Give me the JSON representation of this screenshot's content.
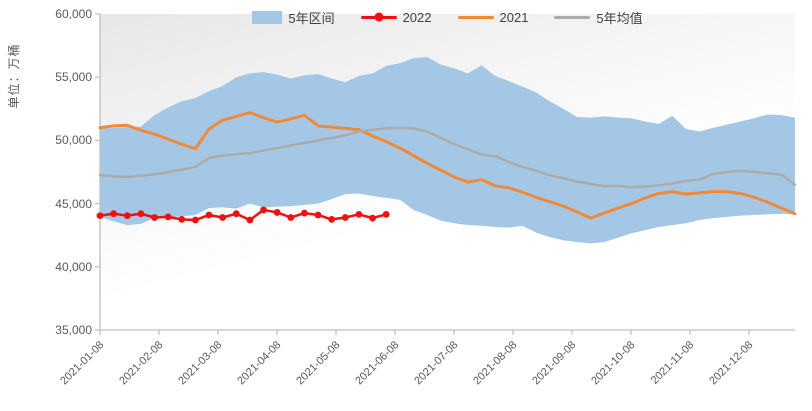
{
  "chart_data": {
    "type": "line",
    "title": "",
    "y_axis": {
      "title": "单位：万桶",
      "min": 35000,
      "max": 60000,
      "tick_step": 5000,
      "tick_labels": [
        "60,000",
        "55,000",
        "50,000",
        "45,000",
        "40,000",
        "35,000"
      ]
    },
    "x_axis": {
      "tick_labels": [
        "2021-01-08",
        "2021-02-08",
        "2021-03-08",
        "2021-04-08",
        "2021-05-08",
        "2021-06-08",
        "2021-07-08",
        "2021-08-08",
        "2021-09-08",
        "2021-10-08",
        "2021-11-08",
        "2021-12-08"
      ],
      "points_per_series": 52,
      "frequency": "weekly"
    },
    "legend": [
      "5年区间",
      "2022",
      "2021",
      "5年均值"
    ],
    "legend_position": "top-center",
    "grid": false,
    "colors": {
      "band": "#A5C7E6",
      "red_2022": "#EE1111",
      "orange_2021": "#EF8A39",
      "gray_mean": "#ABABAB",
      "axis": "#BFBFBF",
      "tick_text": "#595959"
    },
    "series": [
      {
        "name": "5年区间",
        "type": "band",
        "color": "#A5C7E6",
        "upper": [
          50900,
          51000,
          51050,
          51100,
          52000,
          52600,
          53100,
          53350,
          53900,
          54300,
          55000,
          55300,
          55400,
          55200,
          54900,
          55150,
          55250,
          54900,
          54600,
          55100,
          55300,
          55900,
          56100,
          56500,
          56600,
          56000,
          55700,
          55300,
          55950,
          55100,
          54700,
          54250,
          53800,
          53100,
          52500,
          51850,
          51800,
          51900,
          51800,
          51750,
          51500,
          51300,
          51950,
          50900,
          50700,
          51000,
          51250,
          51500,
          51750,
          52050,
          52000,
          51800
        ],
        "lower": [
          43950,
          43600,
          43300,
          43400,
          43850,
          43900,
          44000,
          44100,
          44650,
          44700,
          44600,
          45000,
          44700,
          44750,
          44800,
          44900,
          45000,
          45350,
          45750,
          45800,
          45600,
          45450,
          45300,
          44500,
          44100,
          43650,
          43450,
          43300,
          43250,
          43150,
          43100,
          43250,
          42700,
          42350,
          42100,
          41950,
          41850,
          41950,
          42300,
          42650,
          42900,
          43150,
          43300,
          43450,
          43700,
          43850,
          43950,
          44050,
          44100,
          44150,
          44200,
          44150
        ]
      },
      {
        "name": "2022",
        "type": "line-markers",
        "color": "#EE1111",
        "values": [
          44050,
          44200,
          44050,
          44200,
          43900,
          43950,
          43750,
          43700,
          44100,
          43900,
          44200,
          43700,
          44500,
          44300,
          43900,
          44250,
          44100,
          43750,
          43900,
          44150,
          43850,
          44150
        ]
      },
      {
        "name": "2021",
        "type": "line",
        "color": "#EF8A39",
        "values": [
          51000,
          51150,
          51200,
          50800,
          50500,
          50100,
          49700,
          49350,
          50900,
          51600,
          51900,
          52200,
          51800,
          51450,
          51700,
          52000,
          51150,
          51050,
          50950,
          50850,
          50350,
          49900,
          49400,
          48800,
          48200,
          47650,
          47100,
          46700,
          46900,
          46400,
          46250,
          45900,
          45500,
          45150,
          44800,
          44350,
          43850,
          44250,
          44650,
          45000,
          45450,
          45800,
          45950,
          45750,
          45850,
          45950,
          45950,
          45800,
          45500,
          45100,
          44650,
          44200
        ]
      },
      {
        "name": "5年均值",
        "type": "line",
        "color": "#ABABAB",
        "values": [
          47250,
          47150,
          47100,
          47200,
          47300,
          47500,
          47700,
          47900,
          48600,
          48800,
          48900,
          49000,
          49200,
          49400,
          49600,
          49800,
          50000,
          50200,
          50400,
          50700,
          50850,
          50950,
          51000,
          50950,
          50700,
          50200,
          49700,
          49300,
          48900,
          48750,
          48300,
          47900,
          47600,
          47250,
          47000,
          46750,
          46550,
          46380,
          46400,
          46300,
          46350,
          46450,
          46600,
          46800,
          46900,
          47350,
          47500,
          47600,
          47500,
          47400,
          47300,
          46500
        ]
      }
    ]
  }
}
